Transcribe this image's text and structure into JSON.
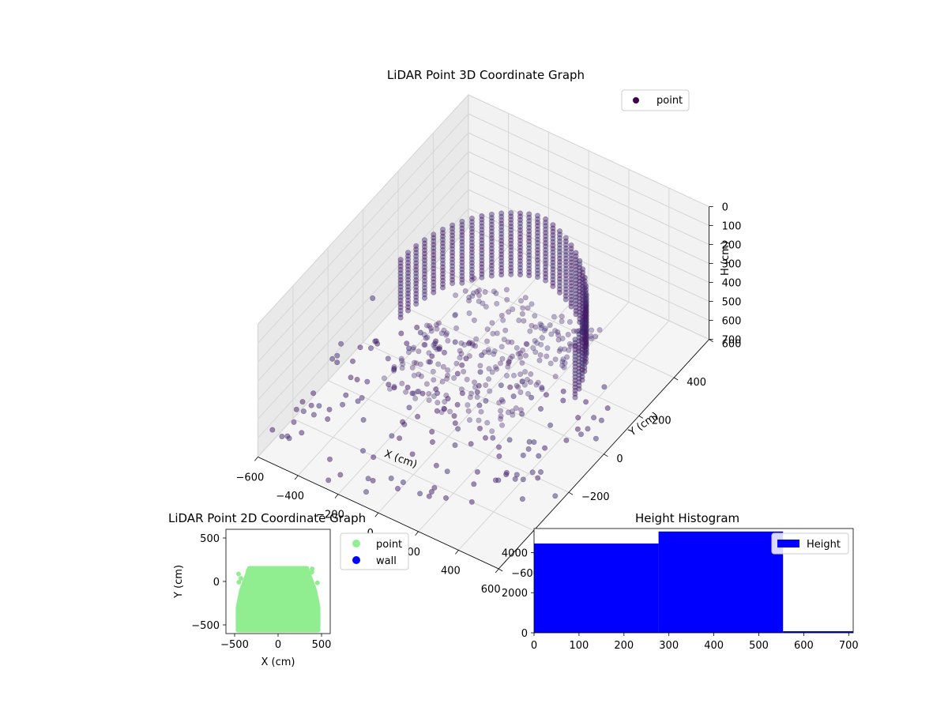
{
  "chart_data": [
    {
      "type": "scatter",
      "projection": "3d",
      "title": "LiDAR Point 3D Coordinate Graph",
      "xlabel": "X (cm)",
      "ylabel": "Y (cm)",
      "zlabel": "H (cm)",
      "xlim": [
        -600,
        600
      ],
      "ylim": [
        -600,
        600
      ],
      "zlim": [
        700,
        0
      ],
      "zaxis_inverted": true,
      "x_ticks": [
        -600,
        -400,
        -200,
        0,
        200,
        400,
        600
      ],
      "y_ticks": [
        -600,
        -400,
        -200,
        0,
        200,
        400,
        600
      ],
      "z_ticks": [
        0,
        100,
        200,
        300,
        400,
        500,
        600,
        700
      ],
      "grid": true,
      "legend_position": "top-right",
      "series": [
        {
          "name": "point",
          "color": "#440154",
          "colormap": "viridis",
          "description": "dense curved wall of points forming a U-shaped room boundary plus a flat floor patch and scattered stray points",
          "sample_points": [
            {
              "x": -380,
              "y": -300,
              "h": 350
            },
            {
              "x": -420,
              "y": -100,
              "h": 300
            },
            {
              "x": -440,
              "y": 100,
              "h": 250
            },
            {
              "x": -400,
              "y": 300,
              "h": 200
            },
            {
              "x": -250,
              "y": 450,
              "h": 150
            },
            {
              "x": 0,
              "y": 480,
              "h": 100
            },
            {
              "x": 250,
              "y": 450,
              "h": 100
            },
            {
              "x": 400,
              "y": 300,
              "h": 150
            },
            {
              "x": 440,
              "y": 100,
              "h": 250
            },
            {
              "x": 420,
              "y": -100,
              "h": 350
            },
            {
              "x": 380,
              "y": -300,
              "h": 450
            },
            {
              "x": 0,
              "y": 0,
              "h": 500
            },
            {
              "x": -100,
              "y": -200,
              "h": 520
            },
            {
              "x": 100,
              "y": 100,
              "h": 500
            },
            {
              "x": -500,
              "y": -500,
              "h": 690
            },
            {
              "x": 300,
              "y": -550,
              "h": 690
            }
          ]
        }
      ]
    },
    {
      "type": "scatter",
      "title": "LiDAR Point 2D Coordinate Graph",
      "xlabel": "X (cm)",
      "ylabel": "Y (cm)",
      "xlim": [
        -600,
        600
      ],
      "ylim": [
        -600,
        600
      ],
      "x_ticks": [
        -500,
        0,
        500
      ],
      "y_ticks": [
        -500,
        0,
        500
      ],
      "legend_position": "outside-right",
      "series": [
        {
          "name": "point",
          "color": "#90ee90",
          "description": "dense filled region spanning roughly x -460..460, y -580..150",
          "extent": {
            "x": [
              -460,
              460
            ],
            "y": [
              -580,
              150
            ]
          }
        },
        {
          "name": "wall",
          "color": "#0000ff",
          "points": []
        }
      ]
    },
    {
      "type": "bar",
      "subtype": "histogram",
      "title": "Height Histogram",
      "xlabel": "",
      "ylabel": "",
      "xlim": [
        0,
        710
      ],
      "ylim": [
        0,
        5200
      ],
      "x_ticks": [
        0,
        100,
        200,
        300,
        400,
        500,
        600,
        700
      ],
      "y_ticks": [
        0,
        2000,
        4000
      ],
      "legend_position": "top-right",
      "series": [
        {
          "name": "Height",
          "color": "#0000ff",
          "bins": [
            {
              "start": 0,
              "end": 277,
              "count": 4450
            },
            {
              "start": 277,
              "end": 554,
              "count": 5050
            },
            {
              "start": 554,
              "end": 710,
              "count": 80
            }
          ]
        }
      ]
    }
  ]
}
